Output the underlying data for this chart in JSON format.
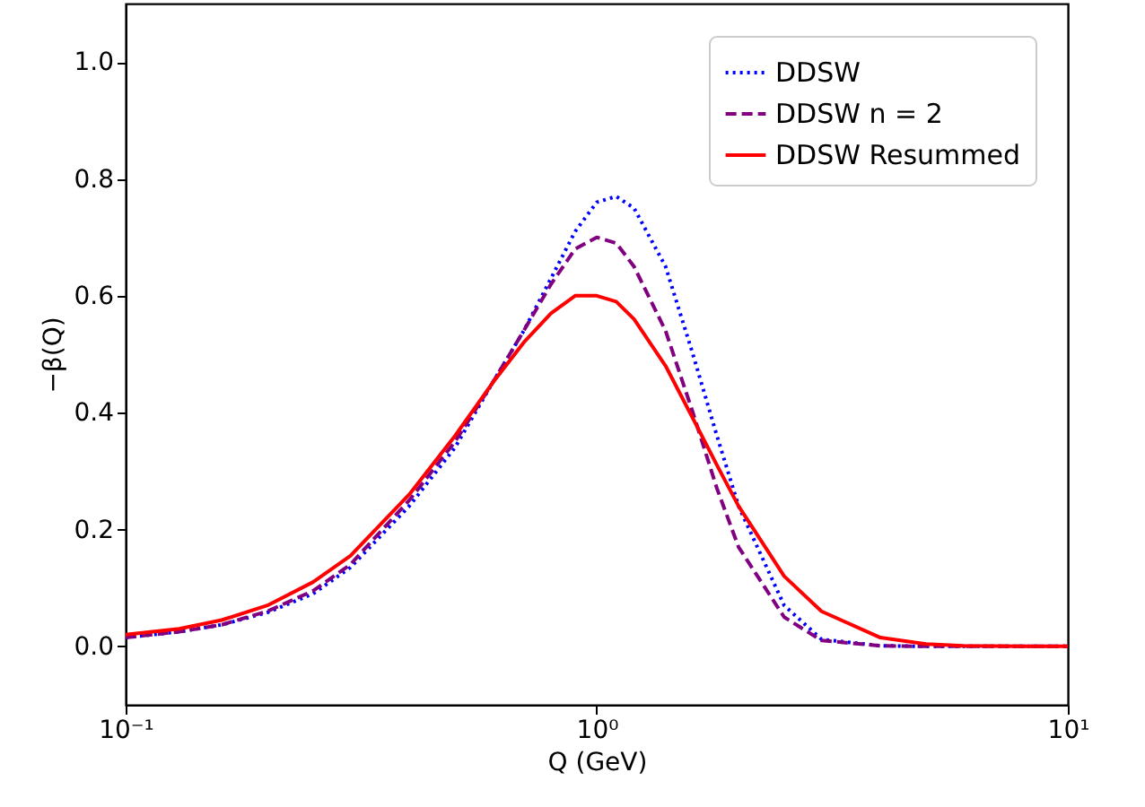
{
  "chart_data": {
    "type": "line",
    "xlabel": "Q (GeV)",
    "ylabel": "−β(Q)",
    "log": "x",
    "grid": false,
    "legend": "top right",
    "marker": "none",
    "xlim": [
      0.1,
      10
    ],
    "xticks": [
      {
        "value": 0.1,
        "label": "10⁻¹"
      },
      {
        "value": 1,
        "label": "10⁰"
      },
      {
        "value": 10,
        "label": "10¹"
      }
    ],
    "ylim": [
      -0.1,
      1.1
    ],
    "yticks": [
      {
        "value": 0,
        "label": "0.0"
      },
      {
        "value": 0.2,
        "label": "0.2"
      },
      {
        "value": 0.4,
        "label": "0.4"
      },
      {
        "value": 0.6,
        "label": "0.6"
      },
      {
        "value": 0.8,
        "label": "0.8"
      },
      {
        "value": 1,
        "label": "1.0"
      }
    ],
    "x": [
      0.1,
      0.13,
      0.16,
      0.2,
      0.25,
      0.3,
      0.4,
      0.5,
      0.6,
      0.7,
      0.8,
      0.9,
      1.0,
      1.1,
      1.2,
      1.4,
      1.6,
      1.8,
      2.0,
      2.5,
      3,
      4,
      5,
      6,
      8,
      10
    ],
    "series": [
      {
        "name": "DDSW",
        "color": "#0000ff",
        "line_style": "dotted",
        "values": [
          0.015,
          0.025,
          0.037,
          0.058,
          0.09,
          0.135,
          0.24,
          0.34,
          0.45,
          0.54,
          0.63,
          0.71,
          0.76,
          0.77,
          0.75,
          0.65,
          0.5,
          0.36,
          0.24,
          0.07,
          0.012,
          0.001,
          0,
          0,
          0,
          0
        ]
      },
      {
        "name": "DDSW n = 2",
        "color": "#800080",
        "line_style": "dashed",
        "values": [
          0.015,
          0.025,
          0.037,
          0.06,
          0.095,
          0.14,
          0.25,
          0.35,
          0.45,
          0.54,
          0.62,
          0.68,
          0.7,
          0.69,
          0.65,
          0.54,
          0.4,
          0.27,
          0.17,
          0.05,
          0.01,
          0.001,
          0,
          0,
          0,
          0
        ]
      },
      {
        "name": "DDSW Resummed",
        "color": "#ff0000",
        "line_style": "solid",
        "values": [
          0.02,
          0.03,
          0.045,
          0.07,
          0.11,
          0.155,
          0.26,
          0.36,
          0.45,
          0.52,
          0.57,
          0.6,
          0.6,
          0.59,
          0.56,
          0.48,
          0.39,
          0.31,
          0.24,
          0.12,
          0.06,
          0.015,
          0.004,
          0.001,
          0,
          0
        ]
      }
    ]
  }
}
